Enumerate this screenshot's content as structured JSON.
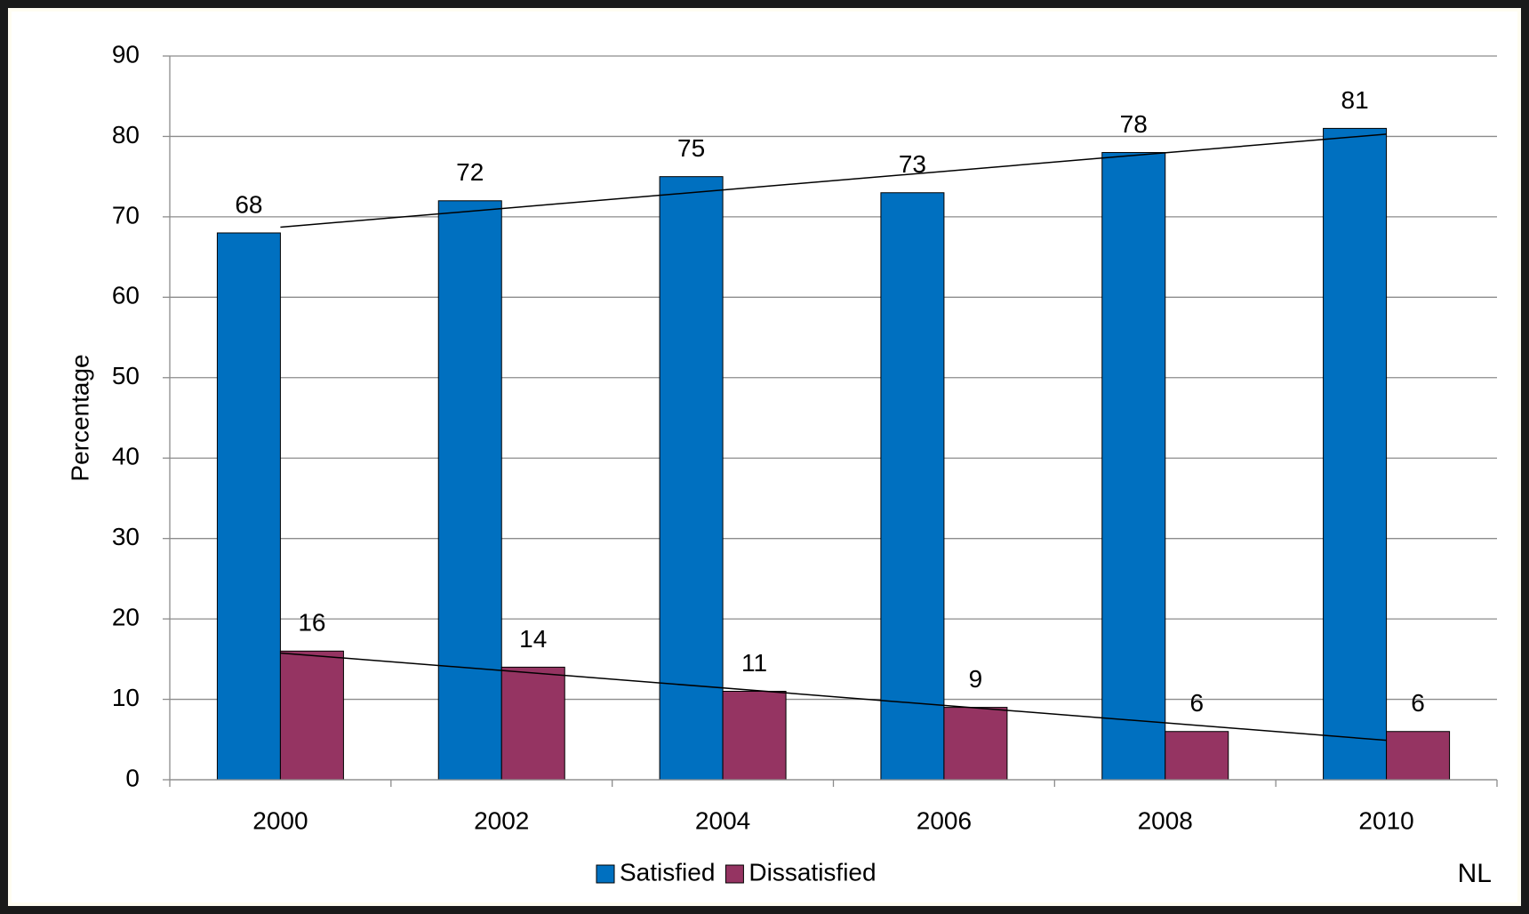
{
  "chart_data": {
    "type": "bar",
    "y_label": "Percentage",
    "annotation": "NL",
    "categories": [
      "2000",
      "2002",
      "2004",
      "2006",
      "2008",
      "2010"
    ],
    "series": [
      {
        "name": "Satisfied",
        "color": "#0070c0",
        "values": [
          68,
          72,
          75,
          73,
          78,
          81
        ]
      },
      {
        "name": "Dissatisfied",
        "color": "#953462",
        "values": [
          16,
          14,
          11,
          9,
          6,
          6
        ]
      }
    ],
    "ylim": [
      0,
      90
    ],
    "yticks": [
      0,
      10,
      20,
      30,
      40,
      50,
      60,
      70,
      80,
      90
    ],
    "grid": true,
    "trendline": true,
    "legend": "bottom"
  }
}
